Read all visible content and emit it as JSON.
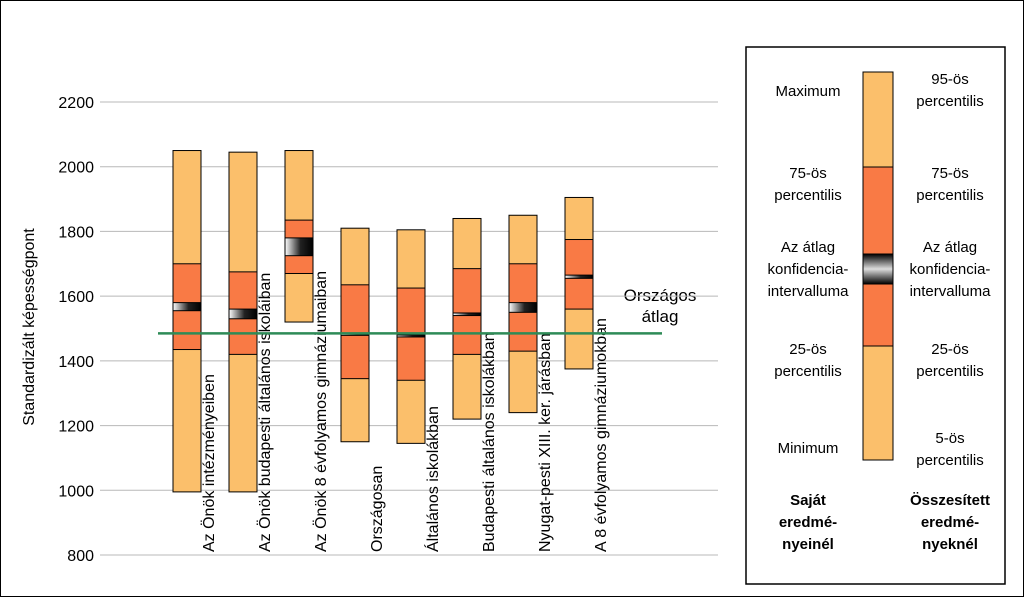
{
  "chart_data": {
    "type": "boxplot",
    "ylabel": "Standardizált képességpont",
    "ylim": [
      800,
      2200
    ],
    "yticks": [
      800,
      1000,
      1200,
      1400,
      1600,
      1800,
      2000,
      2200
    ],
    "reference_line": {
      "value": 1485,
      "label_line1": "Országos",
      "label_line2": "átlag",
      "color": "#2e8b57"
    },
    "colors": {
      "outer": "#fbbf6b",
      "inner": "#f97a45",
      "ci": "#111111"
    },
    "categories": [
      {
        "name": "Az Önök intézményeiben",
        "min": 995,
        "p25": 1435,
        "ci_low": 1555,
        "ci_high": 1580,
        "p75": 1700,
        "max": 2050
      },
      {
        "name": "Az Önök budapesti általános iskoláiban",
        "min": 995,
        "p25": 1420,
        "ci_low": 1530,
        "ci_high": 1560,
        "p75": 1675,
        "max": 2045
      },
      {
        "name": "Az Önök 8 évfolyamos gimnáziumaiban",
        "min": 1520,
        "p25": 1670,
        "ci_low": 1725,
        "ci_high": 1780,
        "p75": 1835,
        "max": 2050
      },
      {
        "name": "Országosan",
        "min": 1150,
        "p25": 1345,
        "ci_low": 1480,
        "ci_high": 1485,
        "p75": 1635,
        "max": 1810
      },
      {
        "name": "Általános iskolákban",
        "min": 1145,
        "p25": 1340,
        "ci_low": 1475,
        "ci_high": 1480,
        "p75": 1625,
        "max": 1805
      },
      {
        "name": "Budapesti általános iskolákban",
        "min": 1220,
        "p25": 1420,
        "ci_low": 1540,
        "ci_high": 1548,
        "p75": 1685,
        "max": 1840
      },
      {
        "name": "Nyugat-pesti XIII. ker. járásban",
        "min": 1240,
        "p25": 1430,
        "ci_low": 1550,
        "ci_high": 1580,
        "p75": 1700,
        "max": 1850
      },
      {
        "name": "A 8 évfolyamos gimnáziumokban",
        "min": 1375,
        "p25": 1560,
        "ci_low": 1655,
        "ci_high": 1665,
        "p75": 1775,
        "max": 1905
      }
    ]
  },
  "legend": {
    "left_labels": [
      "Maximum",
      "75-ös percentilis",
      "Az átlag konfidencia-intervalluma",
      "25-ös percentilis",
      "Minimum"
    ],
    "right_labels": [
      "95-ös percentilis",
      "75-ös percentilis",
      "Az átlag konfidencia-intervalluma",
      "25-ös percentilis",
      "5-ös percentilis"
    ],
    "left_title": "Saját eredményeinél",
    "right_title": "Összesített eredményeknél"
  }
}
